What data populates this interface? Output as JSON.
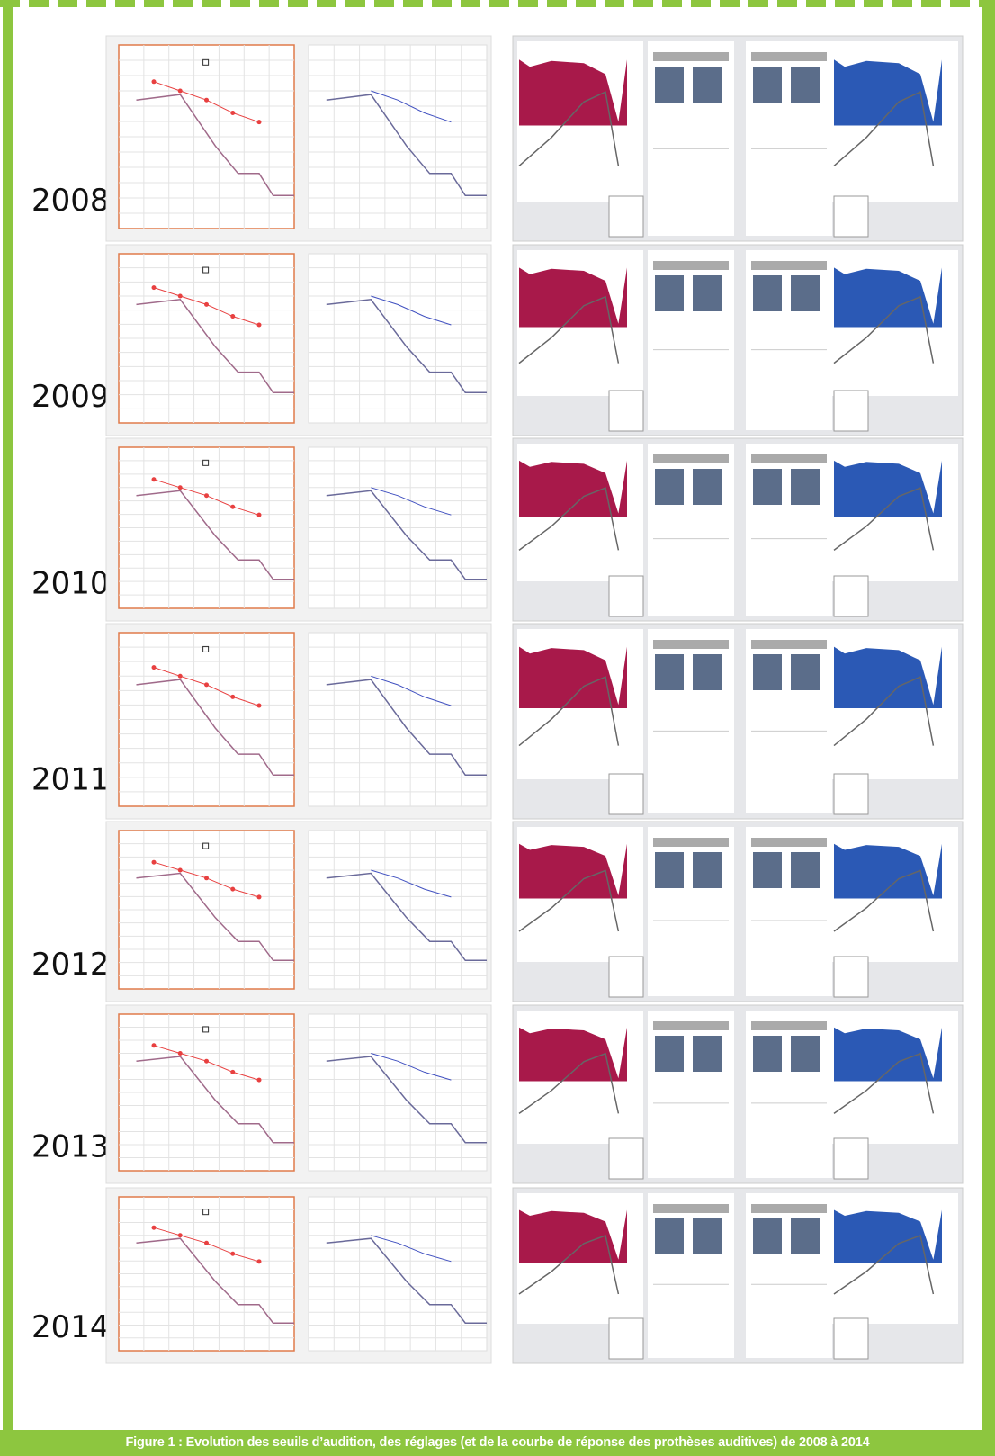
{
  "rows": [
    {
      "year": "2008"
    },
    {
      "year": "2009"
    },
    {
      "year": "2010"
    },
    {
      "year": "2011"
    },
    {
      "year": "2012"
    },
    {
      "year": "2013"
    },
    {
      "year": "2014"
    }
  ],
  "caption": "Figure 1 : Evolution des seuils d’audition, des réglages (et de la courbe de réponse des prothèses auditives) de 2008 à 2014"
}
